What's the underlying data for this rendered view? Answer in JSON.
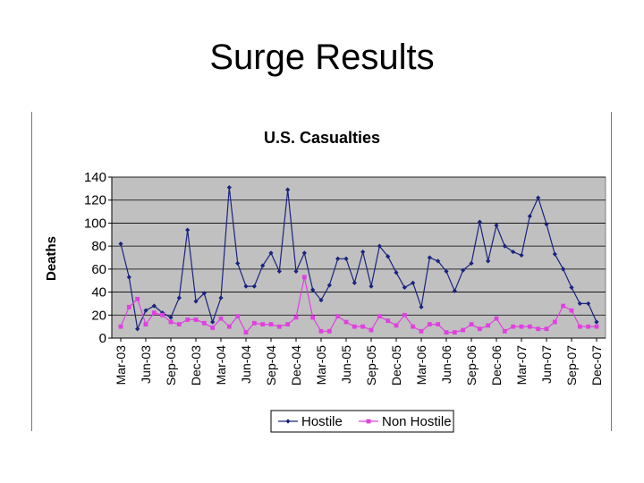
{
  "slide": {
    "title": "Surge Results"
  },
  "chart_data": {
    "type": "line",
    "title": "U.S. Casualties",
    "xlabel": "",
    "ylabel": "Deaths",
    "ylim": [
      0,
      140
    ],
    "yticks": [
      0,
      20,
      40,
      60,
      80,
      100,
      120,
      140
    ],
    "xtick_labels": [
      "Mar-03",
      "Jun-03",
      "Sep-03",
      "Dec-03",
      "Mar-04",
      "Jun-04",
      "Sep-04",
      "Dec-04",
      "Mar-05",
      "Jun-05",
      "Sep-05",
      "Dec-05",
      "Mar-06",
      "Jun-06",
      "Sep-06",
      "Dec-06",
      "Mar-07",
      "Jun-07",
      "Sep-07",
      "Dec-07"
    ],
    "x": [
      "Mar-03",
      "Apr-03",
      "May-03",
      "Jun-03",
      "Jul-03",
      "Aug-03",
      "Sep-03",
      "Oct-03",
      "Nov-03",
      "Dec-03",
      "Jan-04",
      "Feb-04",
      "Mar-04",
      "Apr-04",
      "May-04",
      "Jun-04",
      "Jul-04",
      "Aug-04",
      "Sep-04",
      "Oct-04",
      "Nov-04",
      "Dec-04",
      "Jan-05",
      "Feb-05",
      "Mar-05",
      "Apr-05",
      "May-05",
      "Jun-05",
      "Jul-05",
      "Aug-05",
      "Sep-05",
      "Oct-05",
      "Nov-05",
      "Dec-05",
      "Jan-06",
      "Feb-06",
      "Mar-06",
      "Apr-06",
      "May-06",
      "Jun-06",
      "Jul-06",
      "Aug-06",
      "Sep-06",
      "Oct-06",
      "Nov-06",
      "Dec-06",
      "Jan-07",
      "Feb-07",
      "Mar-07",
      "Apr-07",
      "May-07",
      "Jun-07",
      "Jul-07",
      "Aug-07",
      "Sep-07",
      "Oct-07",
      "Nov-07",
      "Dec-07"
    ],
    "series": [
      {
        "name": "Hostile",
        "color": "#1a237e",
        "marker": "diamond",
        "values": [
          82,
          53,
          8,
          24,
          28,
          22,
          18,
          35,
          94,
          32,
          39,
          14,
          35,
          131,
          65,
          45,
          45,
          63,
          74,
          58,
          129,
          58,
          74,
          42,
          33,
          46,
          69,
          69,
          48,
          75,
          45,
          80,
          71,
          57,
          44,
          48,
          27,
          70,
          67,
          58,
          41,
          59,
          65,
          101,
          67,
          98,
          80,
          75,
          72,
          106,
          122,
          99,
          73,
          60,
          44,
          30,
          30,
          14
        ]
      },
      {
        "name": "Non Hostile",
        "color": "#e040e0",
        "marker": "square",
        "values": [
          10,
          27,
          34,
          12,
          22,
          20,
          14,
          12,
          16,
          16,
          13,
          9,
          17,
          10,
          19,
          5,
          13,
          12,
          12,
          10,
          12,
          18,
          53,
          18,
          6,
          6,
          19,
          14,
          10,
          10,
          7,
          19,
          15,
          11,
          20,
          10,
          6,
          12,
          12,
          5,
          5,
          7,
          12,
          8,
          11,
          17,
          6,
          10,
          10,
          10,
          8,
          8,
          14,
          28,
          24,
          10,
          10,
          10
        ]
      }
    ],
    "grid": true,
    "legend": "bottom"
  }
}
